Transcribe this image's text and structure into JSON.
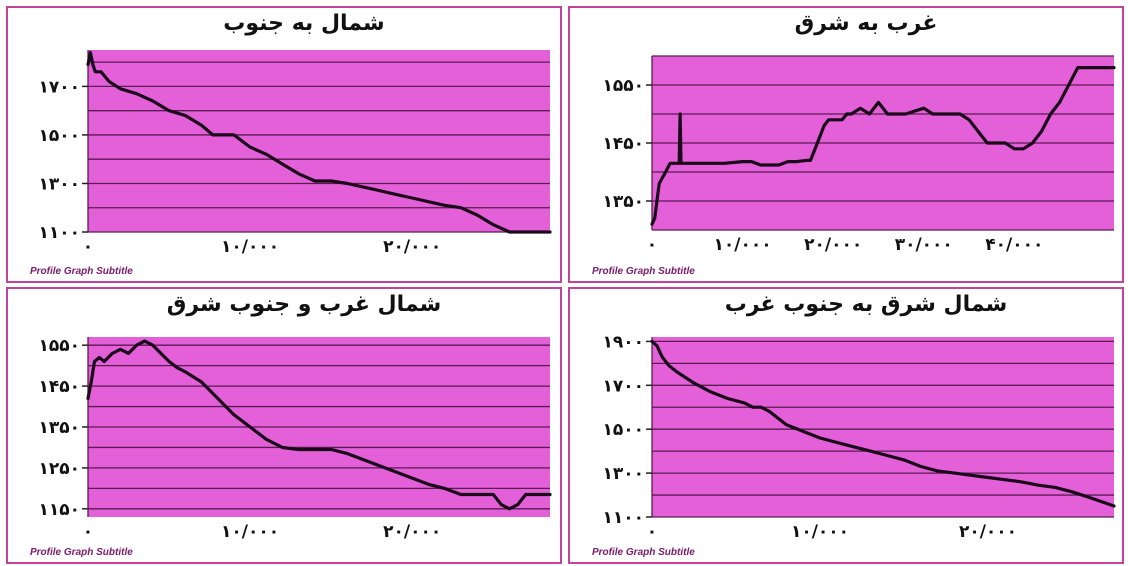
{
  "chart_data": [
    {
      "type": "line",
      "title": "شمال به جنوب",
      "subtitle": "Profile Graph Subtitle",
      "xlim": [
        0,
        28500
      ],
      "ylim": [
        1100,
        1850
      ],
      "xticks": [
        {
          "v": 0,
          "label": "۰"
        },
        {
          "v": 10000,
          "label": "۱۰/۰۰۰"
        },
        {
          "v": 20000,
          "label": "۲۰/۰۰۰"
        }
      ],
      "yticks": [
        {
          "v": 1100,
          "label": "۱۱۰۰"
        },
        {
          "v": 1300,
          "label": "۱۳۰۰"
        },
        {
          "v": 1500,
          "label": "۱۵۰۰"
        },
        {
          "v": 1700,
          "label": "۱۷۰۰"
        }
      ],
      "gridlines": [
        1100,
        1200,
        1300,
        1400,
        1500,
        1600,
        1700,
        1800
      ],
      "grid": true,
      "x": [
        0,
        150,
        300,
        450,
        800,
        1300,
        2000,
        3000,
        4000,
        5000,
        6000,
        7000,
        7700,
        8500,
        9000,
        10000,
        11000,
        12000,
        13000,
        14000,
        15000,
        16000,
        17000,
        18000,
        19000,
        20000,
        21000,
        22000,
        23000,
        24000,
        25000,
        26000,
        27000,
        28500
      ],
      "y": [
        1790,
        1840,
        1790,
        1760,
        1760,
        1720,
        1690,
        1670,
        1640,
        1600,
        1580,
        1540,
        1500,
        1500,
        1500,
        1450,
        1420,
        1380,
        1340,
        1310,
        1310,
        1300,
        1285,
        1270,
        1255,
        1240,
        1225,
        1210,
        1200,
        1170,
        1130,
        1100,
        1100,
        1100
      ]
    },
    {
      "type": "line",
      "title": "غرب به شرق",
      "subtitle": "Profile Graph Subtitle",
      "xlim": [
        0,
        51000
      ],
      "ylim": [
        1300,
        1600
      ],
      "xticks": [
        {
          "v": 0,
          "label": "۰"
        },
        {
          "v": 10000,
          "label": "۱۰/۰۰۰"
        },
        {
          "v": 20000,
          "label": "۲۰/۰۰۰"
        },
        {
          "v": 30000,
          "label": "۳۰/۰۰۰"
        },
        {
          "v": 40000,
          "label": "۴۰/۰۰۰"
        }
      ],
      "yticks": [
        {
          "v": 1350,
          "label": "۱۳۵۰"
        },
        {
          "v": 1450,
          "label": "۱۴۵۰"
        },
        {
          "v": 1550,
          "label": "۱۵۵۰"
        }
      ],
      "gridlines": [
        1300,
        1350,
        1400,
        1450,
        1500,
        1550,
        1600
      ],
      "grid": true,
      "x": [
        0,
        300,
        800,
        1500,
        2000,
        2500,
        2800,
        3000,
        3100,
        3200,
        4000,
        6000,
        8000,
        10000,
        11000,
        12000,
        14000,
        15000,
        16000,
        17000,
        17500,
        18000,
        19000,
        19500,
        20000,
        21000,
        21500,
        22000,
        23000,
        24000,
        25000,
        26000,
        27000,
        28000,
        30000,
        31000,
        32000,
        34000,
        35000,
        36000,
        37000,
        38000,
        39000,
        40000,
        41000,
        42000,
        43000,
        44000,
        45000,
        46000,
        47000,
        48000,
        49000,
        51000
      ],
      "y": [
        1310,
        1320,
        1380,
        1400,
        1415,
        1415,
        1415,
        1415,
        1500,
        1415,
        1415,
        1415,
        1415,
        1418,
        1418,
        1412,
        1412,
        1418,
        1418,
        1420,
        1420,
        1440,
        1480,
        1490,
        1490,
        1490,
        1500,
        1500,
        1510,
        1500,
        1520,
        1500,
        1500,
        1500,
        1510,
        1500,
        1500,
        1500,
        1490,
        1470,
        1450,
        1450,
        1450,
        1440,
        1440,
        1450,
        1470,
        1500,
        1520,
        1550,
        1580,
        1580,
        1580,
        1580
      ]
    },
    {
      "type": "line",
      "title": "شمال غرب و جنوب شرق",
      "subtitle": "Profile Graph Subtitle",
      "xlim": [
        0,
        28500
      ],
      "ylim": [
        1130,
        1570
      ],
      "xticks": [
        {
          "v": 0,
          "label": "۰"
        },
        {
          "v": 10000,
          "label": "۱۰/۰۰۰"
        },
        {
          "v": 20000,
          "label": "۲۰/۰۰۰"
        }
      ],
      "yticks": [
        {
          "v": 1150,
          "label": "۱۱۵۰"
        },
        {
          "v": 1250,
          "label": "۱۲۵۰"
        },
        {
          "v": 1350,
          "label": "۱۳۵۰"
        },
        {
          "v": 1450,
          "label": "۱۴۵۰"
        },
        {
          "v": 1550,
          "label": "۱۵۵۰"
        }
      ],
      "gridlines": [
        1150,
        1200,
        1250,
        1300,
        1350,
        1400,
        1450,
        1500,
        1550
      ],
      "grid": true,
      "x": [
        0,
        200,
        400,
        700,
        1000,
        1500,
        2000,
        2500,
        3000,
        3500,
        4000,
        4500,
        5000,
        5500,
        6000,
        7000,
        8000,
        9000,
        10000,
        11000,
        12000,
        13000,
        14000,
        15000,
        16000,
        17000,
        18000,
        19000,
        20000,
        21000,
        22000,
        23000,
        24000,
        25000,
        25500,
        26000,
        26500,
        27000,
        28500
      ],
      "y": [
        1420,
        1460,
        1510,
        1520,
        1510,
        1530,
        1540,
        1530,
        1550,
        1560,
        1550,
        1530,
        1510,
        1495,
        1485,
        1460,
        1420,
        1380,
        1350,
        1320,
        1300,
        1295,
        1295,
        1295,
        1285,
        1270,
        1255,
        1240,
        1225,
        1210,
        1200,
        1185,
        1185,
        1185,
        1160,
        1150,
        1160,
        1185,
        1185
      ]
    },
    {
      "type": "line",
      "title": "شمال شرق به جنوب غرب",
      "subtitle": "Profile Graph Subtitle",
      "xlim": [
        0,
        27500
      ],
      "ylim": [
        1100,
        1920
      ],
      "xticks": [
        {
          "v": 0,
          "label": "۰"
        },
        {
          "v": 10000,
          "label": "۱۰/۰۰۰"
        },
        {
          "v": 20000,
          "label": "۲۰/۰۰۰"
        }
      ],
      "yticks": [
        {
          "v": 1100,
          "label": "۱۱۰۰"
        },
        {
          "v": 1300,
          "label": "۱۳۰۰"
        },
        {
          "v": 1500,
          "label": "۱۵۰۰"
        },
        {
          "v": 1700,
          "label": "۱۷۰۰"
        },
        {
          "v": 1900,
          "label": "۱۹۰۰"
        }
      ],
      "gridlines": [
        1100,
        1200,
        1300,
        1400,
        1500,
        1600,
        1700,
        1800,
        1900
      ],
      "grid": true,
      "x": [
        0,
        300,
        600,
        1000,
        1500,
        2500,
        3500,
        4500,
        5500,
        6000,
        6500,
        7000,
        8000,
        9000,
        10000,
        11000,
        12000,
        13000,
        14000,
        15000,
        16000,
        17000,
        18000,
        19000,
        20000,
        21000,
        22000,
        23000,
        24000,
        25000,
        26000,
        27500
      ],
      "y": [
        1900,
        1880,
        1830,
        1790,
        1760,
        1710,
        1670,
        1640,
        1620,
        1600,
        1600,
        1580,
        1520,
        1490,
        1460,
        1440,
        1420,
        1400,
        1380,
        1360,
        1330,
        1310,
        1300,
        1290,
        1280,
        1270,
        1260,
        1245,
        1235,
        1215,
        1190,
        1150
      ]
    }
  ],
  "style": {
    "plot_bg": "#e460d8",
    "grid_color": "#5a1a52",
    "line_color": "#1a0a1a",
    "frame_color": "#c0449b",
    "subtitle_color": "#7a1a6a"
  }
}
